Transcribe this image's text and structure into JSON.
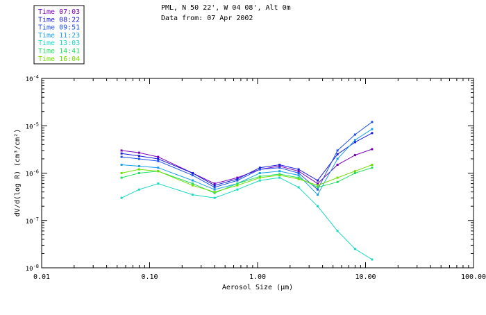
{
  "chart_data": {
    "type": "line",
    "title_line1": "PML, N 50 22', W 04 08', Alt 0m",
    "title_line2": "Data from: 07 Apr 2002",
    "xlabel": "Aerosol Size (μm)",
    "ylabel": "dV/d(log R)  (cm³/cm²)",
    "xscale": "log",
    "yscale": "log",
    "xlim": [
      0.01,
      100
    ],
    "ylim": [
      1e-08,
      0.0001
    ],
    "x_tick_labels": [
      "0.01",
      "0.10",
      "1.00",
      "10.00",
      "100.00"
    ],
    "y_tick_labels": [
      {
        "base": "10",
        "exp": "-4",
        "value": -4
      },
      {
        "base": "10",
        "exp": "-5",
        "value": -5
      },
      {
        "base": "10",
        "exp": "-6",
        "value": -6
      },
      {
        "base": "10",
        "exp": "-7",
        "value": -7
      },
      {
        "base": "10",
        "exp": "-8",
        "value": -8
      }
    ],
    "legend_position": "top-left",
    "x": [
      0.055,
      0.08,
      0.12,
      0.25,
      0.4,
      0.65,
      1.05,
      1.6,
      2.4,
      3.6,
      5.5,
      8.0,
      11.5
    ],
    "series": [
      {
        "name": "Time 07:03",
        "color": "#7a00b8",
        "label": "Time 07:03",
        "values": [
          3e-06,
          2.7e-06,
          2.2e-06,
          1e-06,
          6e-07,
          8e-07,
          1.2e-06,
          1.4e-06,
          1.1e-06,
          6e-07,
          1.5e-06,
          2.4e-06,
          3.2e-06
        ]
      },
      {
        "name": "Time 08:22",
        "color": "#1a1ae0",
        "label": "Time 08:22",
        "values": [
          2.6e-06,
          2.3e-06,
          2e-06,
          1e-06,
          5.5e-07,
          7.5e-07,
          1.3e-06,
          1.5e-06,
          1.2e-06,
          7e-07,
          2.5e-06,
          4.5e-06,
          7e-06
        ]
      },
      {
        "name": "Time 09:51",
        "color": "#1f52e8",
        "label": "Time 09:51",
        "values": [
          2.2e-06,
          2e-06,
          1.8e-06,
          9e-07,
          5e-07,
          7e-07,
          1.2e-06,
          1.3e-06,
          1e-06,
          4.5e-07,
          3e-06,
          6.5e-06,
          1.2e-05
        ]
      },
      {
        "name": "Time 11:23",
        "color": "#18a0e8",
        "label": "Time 11:23",
        "values": [
          1.5e-06,
          1.4e-06,
          1.3e-06,
          7e-07,
          4.5e-07,
          6e-07,
          1e-06,
          1.1e-06,
          9e-07,
          3.5e-07,
          2e-06,
          5e-06,
          8.5e-06
        ]
      },
      {
        "name": "Time 13:03",
        "color": "#18d8c0",
        "label": "Time 13:03",
        "values": [
          3e-07,
          4.5e-07,
          6e-07,
          3.5e-07,
          3e-07,
          4.5e-07,
          7e-07,
          8e-07,
          5e-07,
          2e-07,
          6e-08,
          2.5e-08,
          1.5e-08
        ]
      },
      {
        "name": "Time 14:41",
        "color": "#20e060",
        "label": "Time 14:41",
        "values": [
          8e-07,
          1e-06,
          1.1e-06,
          6e-07,
          3.8e-07,
          6e-07,
          8.5e-07,
          9.5e-07,
          8e-07,
          5e-07,
          6.5e-07,
          1e-06,
          1.3e-06
        ]
      },
      {
        "name": "Time 16:04",
        "color": "#70e000",
        "label": "Time 16:04",
        "values": [
          1e-06,
          1.2e-06,
          1.1e-06,
          5.5e-07,
          4e-07,
          5.5e-07,
          8e-07,
          9e-07,
          7.5e-07,
          5.5e-07,
          8e-07,
          1.1e-06,
          1.5e-06
        ]
      }
    ]
  }
}
